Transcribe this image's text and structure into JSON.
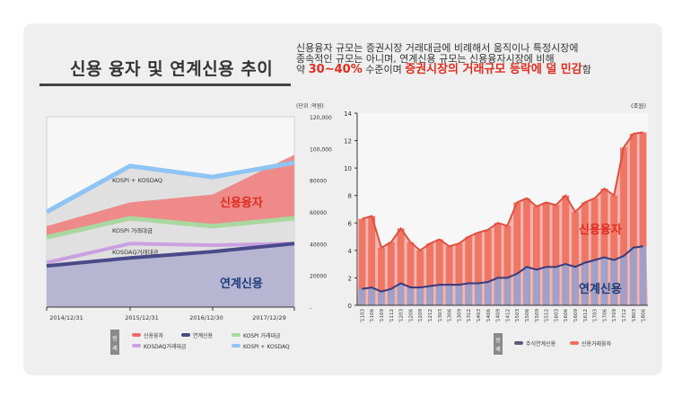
{
  "header": {
    "title": "신용 융자 및 연계신용 추이",
    "desc_line1": "신용융자 규모는 증권시장 거래대금에 비례해서 움직이나 특정시장에",
    "desc_line2": "종속적인 규모는 아니며, 연계신용 규모는 신용융자시장에 비해",
    "desc_line3_a": "약 ",
    "desc_line3_b": "30~40%",
    "desc_line3_c": " 수준이며 ",
    "desc_line3_d": "증권시장의 거래규모 등락에 덜 민감",
    "desc_line3_e": "함"
  },
  "left_chart": {
    "unit": "(단위 :억원)",
    "y_ticks": [
      "120,000",
      "100,000",
      "80000",
      "60000",
      "40000",
      "20000",
      "-"
    ],
    "y_values": [
      120000,
      100000,
      80000,
      60000,
      40000,
      20000,
      0
    ],
    "categories": [
      "2014/12/31",
      "2015/12/31",
      "2016/12/30",
      "2017/12/29"
    ],
    "inline_labels": {
      "kospi_kosdaq": "KOSPI + KOSDAQ",
      "kospi": "KOSPI 거래대금",
      "kosdaq": "KOSDAQ거래대금"
    },
    "big_labels": {
      "credit": "신용융자",
      "linked": "연계신용"
    },
    "legend_title": "범례",
    "legend": [
      {
        "label": "신용융자",
        "color": "#f06b6b"
      },
      {
        "label": "연계신용",
        "color": "#4a4a8a"
      },
      {
        "label": "KOSPI 거래대금",
        "color": "#a8d8a0"
      },
      {
        "label": "KOSDAQ거래대금",
        "color": "#c9a0e0"
      },
      {
        "label": "KOSPI + KOSDAQ",
        "color": "#8fc4f5"
      }
    ]
  },
  "right_chart": {
    "unit": "(조원)",
    "y_ticks": [
      "14",
      "12",
      "10",
      "8",
      "6",
      "4",
      "2",
      "0"
    ],
    "x_labels": [
      "'1103",
      "'1106",
      "'1109",
      "'1112",
      "'1203",
      "'1206",
      "'1209",
      "'1212",
      "'1303",
      "'1306",
      "'1309",
      "'1312",
      "'1403",
      "'1406",
      "'1409",
      "'1412",
      "'1503",
      "'1506",
      "'1509",
      "'1512",
      "'1603",
      "'1606",
      "'1609",
      "'1612",
      "'1703",
      "'1706",
      "'1709",
      "'1712",
      "'1803",
      "'1806"
    ],
    "big_labels": {
      "credit": "신용융자",
      "linked": "연계신용"
    },
    "legend_title": "범례",
    "legend": [
      {
        "label": "주식연계신용",
        "color": "#5a5a7a"
      },
      {
        "label": "신용거래융자",
        "color": "#f07060"
      }
    ]
  },
  "chart_data": [
    {
      "type": "area",
      "title": "",
      "unit": "억원",
      "categories": [
        "2014/12/31",
        "2015/12/31",
        "2016/12/30",
        "2017/12/29"
      ],
      "ylim": [
        0,
        120000
      ],
      "series": [
        {
          "name": "연계신용",
          "values": [
            26000,
            31000,
            35000,
            40000
          ]
        },
        {
          "name": "신용융자",
          "values": [
            51000,
            66000,
            71000,
            96000
          ]
        },
        {
          "name": "KOSPI 거래대금",
          "values": [
            44000,
            56000,
            51000,
            56000
          ]
        },
        {
          "name": "KOSDAQ거래대금",
          "values": [
            28000,
            40000,
            39000,
            40000
          ]
        },
        {
          "name": "KOSPI + KOSDAQ",
          "values": [
            60000,
            89000,
            82000,
            91000
          ]
        }
      ]
    },
    {
      "type": "bar",
      "title": "",
      "unit": "조원",
      "categories": [
        "'1103",
        "'1106",
        "'1109",
        "'1112",
        "'1203",
        "'1206",
        "'1209",
        "'1212",
        "'1303",
        "'1306",
        "'1309",
        "'1312",
        "'1403",
        "'1406",
        "'1409",
        "'1412",
        "'1503",
        "'1506",
        "'1509",
        "'1512",
        "'1603",
        "'1606",
        "'1609",
        "'1612",
        "'1703",
        "'1706",
        "'1709",
        "'1712",
        "'1803",
        "'1806"
      ],
      "ylim": [
        0,
        14
      ],
      "series": [
        {
          "name": "신용거래융자",
          "values": [
            6.3,
            6.5,
            4.2,
            4.6,
            5.6,
            4.6,
            4.0,
            4.5,
            4.8,
            4.3,
            4.5,
            5.0,
            5.3,
            5.5,
            6.0,
            5.8,
            7.5,
            7.8,
            7.2,
            7.5,
            7.3,
            8.0,
            6.8,
            7.5,
            7.8,
            8.5,
            8.0,
            11.5,
            12.5,
            12.6
          ]
        },
        {
          "name": "주식연계신용",
          "values": [
            1.2,
            1.3,
            1.0,
            1.2,
            1.6,
            1.3,
            1.3,
            1.4,
            1.5,
            1.5,
            1.5,
            1.6,
            1.6,
            1.7,
            2.0,
            2.0,
            2.3,
            2.8,
            2.6,
            2.8,
            2.8,
            3.0,
            2.8,
            3.1,
            3.3,
            3.5,
            3.3,
            3.6,
            4.2,
            4.3
          ]
        }
      ]
    }
  ]
}
